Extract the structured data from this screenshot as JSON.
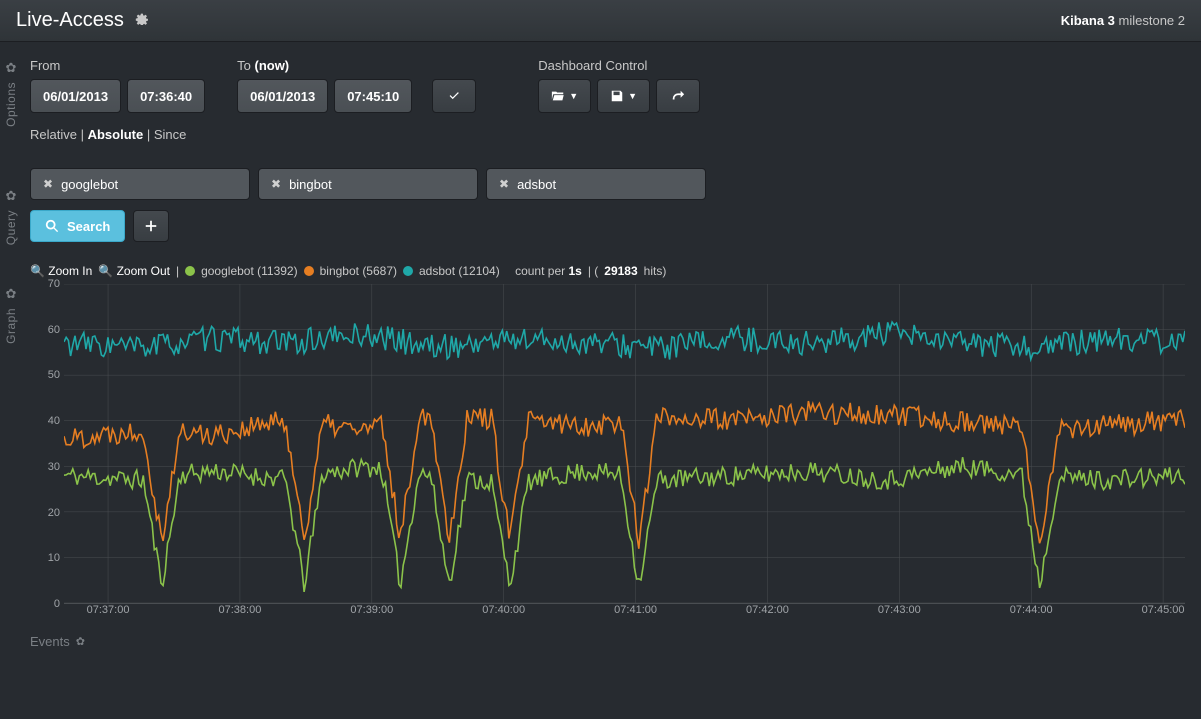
{
  "topbar": {
    "title": "Live-Access",
    "version_label": "Kibana 3",
    "version_sub": "milestone 2"
  },
  "time": {
    "from_label": "From",
    "to_label": "To",
    "to_now": "(now)",
    "from_date": "06/01/2013",
    "from_time": "07:36:40",
    "to_date": "06/01/2013",
    "to_time": "07:45:10",
    "modes": {
      "relative": "Relative",
      "absolute": "Absolute",
      "since": "Since"
    }
  },
  "dashboard": {
    "label": "Dashboard Control"
  },
  "query": {
    "pills": [
      {
        "label": "googlebot"
      },
      {
        "label": "bingbot"
      },
      {
        "label": "adsbot"
      }
    ],
    "search_label": "Search"
  },
  "side": {
    "options": "Options",
    "query": "Query",
    "graph": "Graph"
  },
  "chart": {
    "zoom_in": "Zoom In",
    "zoom_out": "Zoom Out",
    "count_prefix": "count per",
    "count_interval": "1s",
    "hits_value": "29183",
    "hits_suffix": "hits",
    "series": [
      {
        "name": "googlebot",
        "count": 11392,
        "color": "#8bc34a"
      },
      {
        "name": "bingbot",
        "count": 5687,
        "color": "#e67e22"
      },
      {
        "name": "adsbot",
        "count": 12104,
        "color": "#1fa8a8"
      }
    ],
    "y": {
      "min": 0,
      "max": 70,
      "step": 10,
      "grid_color": "#4a4e52",
      "label_color": "#a0a4a8"
    },
    "x": {
      "ticks": [
        "07:37:00",
        "07:38:00",
        "07:39:00",
        "07:40:00",
        "07:41:00",
        "07:42:00",
        "07:43:00",
        "07:44:00",
        "07:45:00"
      ],
      "start_min": 36.666,
      "end_min": 45.166
    },
    "line_width": 1.6,
    "background": "#272b30",
    "data": {
      "googlebot_base": [
        28,
        27,
        29,
        27,
        30,
        28,
        26,
        29,
        27,
        28,
        29,
        27,
        30,
        28,
        27,
        28
      ],
      "googlebot_dips": [
        0.74,
        1.82,
        2.55,
        2.92,
        3.38,
        4.36,
        7.4
      ],
      "bingbot_base": [
        36,
        38,
        37,
        40,
        38,
        42,
        40,
        39,
        41,
        40,
        42,
        41,
        40,
        38,
        39,
        40
      ],
      "bingbot_dips": [
        0.74,
        1.82,
        2.55,
        2.92,
        3.38,
        4.36,
        7.4
      ],
      "adsbot_base": [
        57,
        56,
        58,
        57,
        59,
        56,
        58,
        57,
        56,
        58,
        57,
        59,
        57,
        56,
        58,
        57
      ]
    }
  },
  "events": {
    "label": "Events"
  }
}
